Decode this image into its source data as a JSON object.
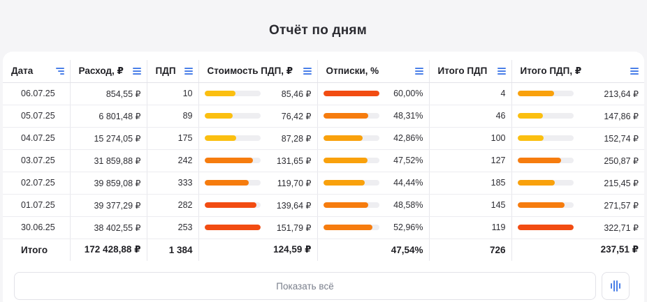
{
  "page": {
    "title": "Отчёт по дням"
  },
  "colors": {
    "accent": "#4a7fe8",
    "bar_yellow": "#fbbf10",
    "bar_amber": "#f9a10c",
    "bar_orange": "#f67c0e",
    "bar_red": "#f24c12",
    "track": "#eeeef1"
  },
  "table": {
    "columns": [
      {
        "label": "Дата",
        "icon": "sort-icon"
      },
      {
        "label": "Расход, ₽",
        "icon": "menu-icon"
      },
      {
        "label": "ПДП",
        "icon": "menu-icon"
      },
      {
        "label": "Стоимость ПДП, ₽",
        "icon": "menu-icon"
      },
      {
        "label": "Отписки, %",
        "icon": "menu-icon"
      },
      {
        "label": "Итого ПДП",
        "icon": "menu-icon"
      },
      {
        "label": "Итого ПДП, ₽",
        "icon": "menu-icon"
      }
    ],
    "rows": [
      {
        "date": "06.07.25",
        "spend": "854,55 ₽",
        "pdp": "10",
        "cost": "85,46 ₽",
        "cost_level": 0.56,
        "cost_color": "#fbbf10",
        "unsub": "60,00%",
        "unsub_level": 1.0,
        "unsub_color": "#f24c12",
        "total_pdp": "4",
        "total_cost": "213,64 ₽",
        "total_cost_level": 0.66,
        "total_cost_color": "#f9a10c"
      },
      {
        "date": "05.07.25",
        "spend": "6 801,48 ₽",
        "pdp": "89",
        "cost": "76,42 ₽",
        "cost_level": 0.5,
        "cost_color": "#fbbf10",
        "unsub": "48,31%",
        "unsub_level": 0.81,
        "unsub_color": "#f67c0e",
        "total_pdp": "46",
        "total_cost": "147,86 ₽",
        "total_cost_level": 0.46,
        "total_cost_color": "#fbbf10"
      },
      {
        "date": "04.07.25",
        "spend": "15 274,05 ₽",
        "pdp": "175",
        "cost": "87,28 ₽",
        "cost_level": 0.57,
        "cost_color": "#fbbf10",
        "unsub": "42,86%",
        "unsub_level": 0.71,
        "unsub_color": "#f9a10c",
        "total_pdp": "100",
        "total_cost": "152,74 ₽",
        "total_cost_level": 0.47,
        "total_cost_color": "#fbbf10"
      },
      {
        "date": "03.07.25",
        "spend": "31 859,88 ₽",
        "pdp": "242",
        "cost": "131,65 ₽",
        "cost_level": 0.87,
        "cost_color": "#f67c0e",
        "unsub": "47,52%",
        "unsub_level": 0.79,
        "unsub_color": "#f9a10c",
        "total_pdp": "127",
        "total_cost": "250,87 ₽",
        "total_cost_level": 0.78,
        "total_cost_color": "#f67c0e"
      },
      {
        "date": "02.07.25",
        "spend": "39 859,08 ₽",
        "pdp": "333",
        "cost": "119,70 ₽",
        "cost_level": 0.79,
        "cost_color": "#f67c0e",
        "unsub": "44,44%",
        "unsub_level": 0.74,
        "unsub_color": "#f9a10c",
        "total_pdp": "185",
        "total_cost": "215,45 ₽",
        "total_cost_level": 0.67,
        "total_cost_color": "#f9a10c"
      },
      {
        "date": "01.07.25",
        "spend": "39 377,29 ₽",
        "pdp": "282",
        "cost": "139,64 ₽",
        "cost_level": 0.93,
        "cost_color": "#f24c12",
        "unsub": "48,58%",
        "unsub_level": 0.81,
        "unsub_color": "#f67c0e",
        "total_pdp": "145",
        "total_cost": "271,57 ₽",
        "total_cost_level": 0.84,
        "total_cost_color": "#f67c0e"
      },
      {
        "date": "30.06.25",
        "spend": "38 402,55 ₽",
        "pdp": "253",
        "cost": "151,79 ₽",
        "cost_level": 1.0,
        "cost_color": "#f24c12",
        "unsub": "52,96%",
        "unsub_level": 0.88,
        "unsub_color": "#f67c0e",
        "total_pdp": "119",
        "total_cost": "322,71 ₽",
        "total_cost_level": 1.0,
        "total_cost_color": "#f24c12"
      }
    ],
    "totals": {
      "label": "Итого",
      "spend": "172 428,88 ₽",
      "pdp": "1 384",
      "cost": "124,59 ₽",
      "unsub": "47,54%",
      "total_pdp": "726",
      "total_cost": "237,51 ₽"
    }
  },
  "footer": {
    "show_all_label": "Показать всё",
    "chart_toggle_icon": "bar-chart-icon"
  }
}
